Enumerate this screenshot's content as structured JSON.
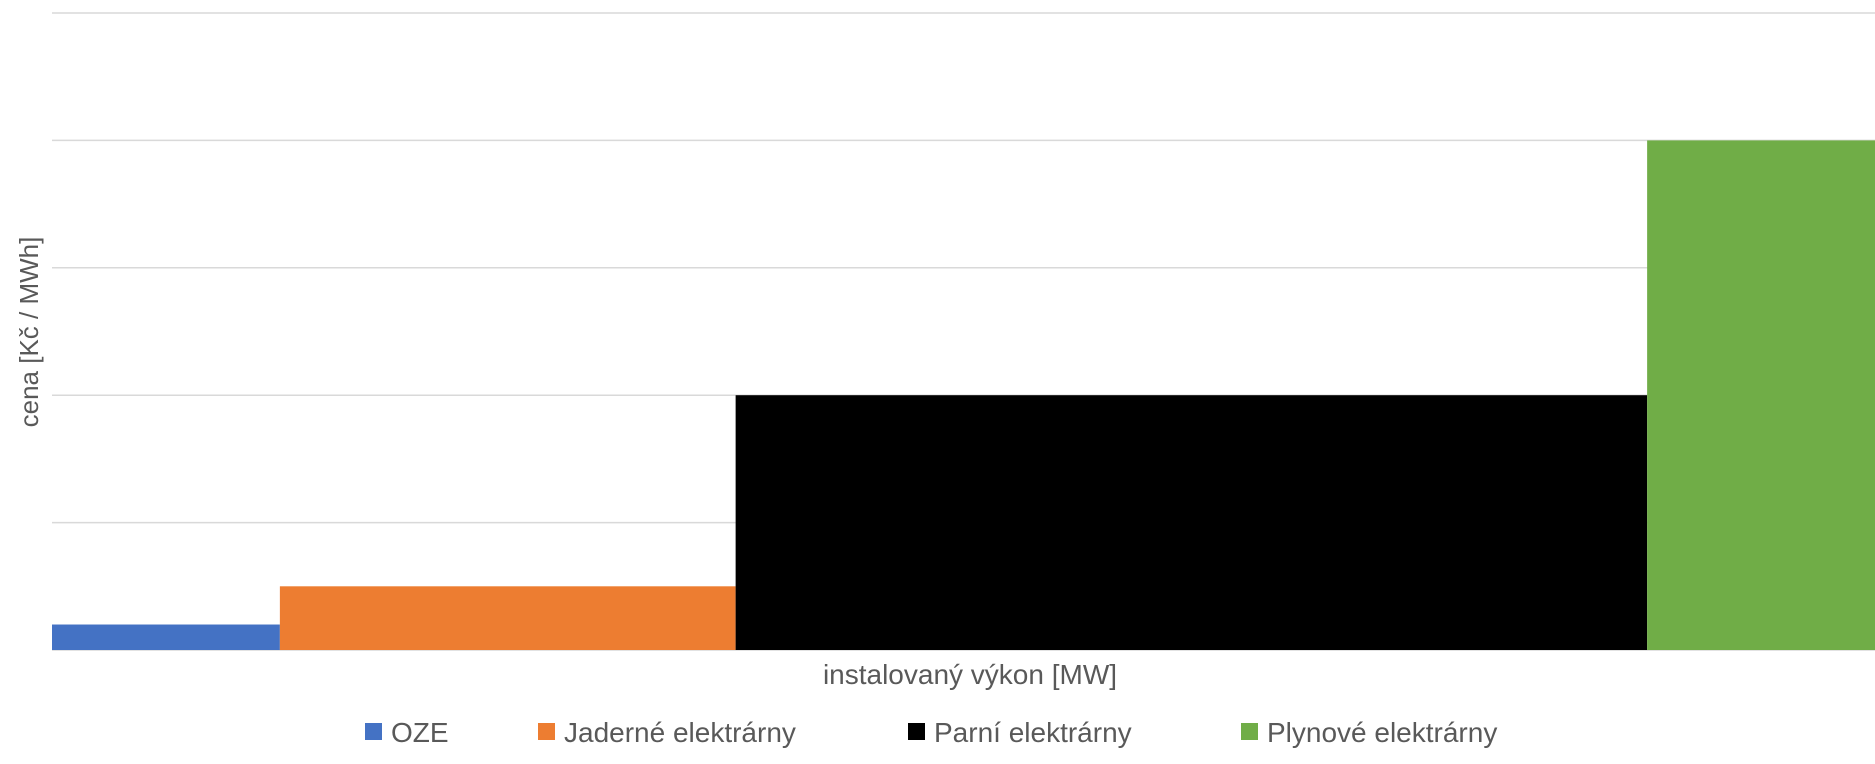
{
  "chart_data": {
    "type": "bar",
    "variant": "variable-width step (merit order)",
    "title": "",
    "xlabel": "instalovaný výkon [MW]",
    "ylabel": "cena [Kč / MWh]",
    "ylim": [
      0,
      5
    ],
    "gridlines": [
      0,
      1,
      2,
      3,
      4,
      5
    ],
    "grid": true,
    "legend_position": "bottom",
    "series": [
      {
        "name": "OZE",
        "color": "#4472C4",
        "x_start": 0,
        "x_end": 1,
        "value": 0.2
      },
      {
        "name": "Jaderné elektrárny",
        "color": "#ED7D31",
        "x_start": 1,
        "x_end": 3,
        "value": 0.5
      },
      {
        "name": "Parní elektrárny",
        "color": "#000000",
        "x_start": 3,
        "x_end": 7,
        "value": 2
      },
      {
        "name": "Plynové elektrárny",
        "color": "#70AD47",
        "x_start": 7,
        "x_end": 8,
        "value": 4
      }
    ],
    "xlim": [
      0,
      8
    ]
  }
}
